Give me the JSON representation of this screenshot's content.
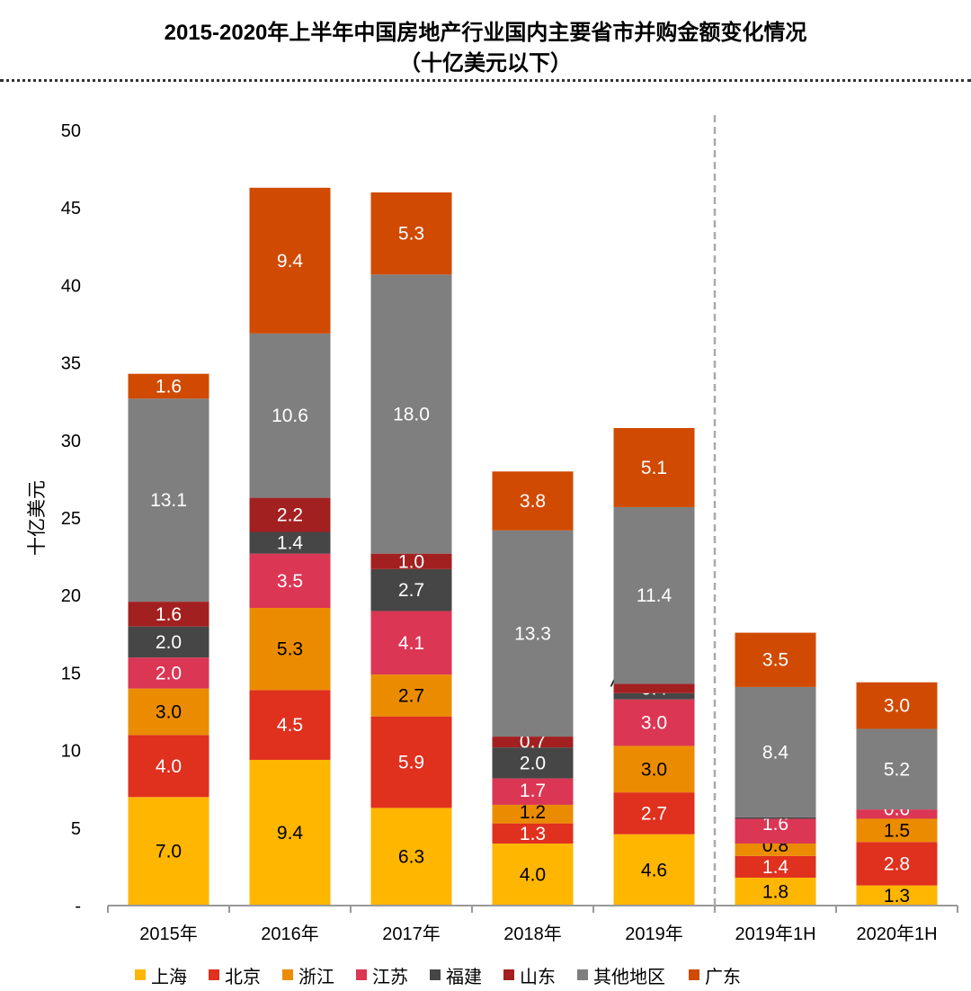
{
  "chart_data": {
    "type": "bar",
    "stacked": true,
    "title": "2015-2020年上半年中国房地产行业国内主要省市并购金额变化情况",
    "subtitle": "（十亿美元以下）",
    "xlabel": "",
    "ylabel": "十亿美元",
    "ylim": [
      0,
      50
    ],
    "yticks": [
      "-",
      "5",
      "10",
      "15",
      "20",
      "25",
      "30",
      "35",
      "40",
      "45",
      "50"
    ],
    "grid": false,
    "legend_position": "bottom",
    "categories": [
      "2015年",
      "2016年",
      "2017年",
      "2018年",
      "2019年",
      "2019年1H",
      "2020年1H"
    ],
    "divider_after": "2019年",
    "series": [
      {
        "name": "上海",
        "color": "#FFB600",
        "label_color": "#000000",
        "values": [
          7.0,
          9.4,
          6.3,
          4.0,
          4.6,
          1.8,
          1.3
        ]
      },
      {
        "name": "北京",
        "color": "#E0301E",
        "label_color": "#FFFFFF",
        "values": [
          4.0,
          4.5,
          5.9,
          1.3,
          2.7,
          1.4,
          2.8
        ]
      },
      {
        "name": "浙江",
        "color": "#EB8C00",
        "label_color": "#000000",
        "values": [
          3.0,
          5.3,
          2.7,
          1.2,
          3.0,
          0.8,
          1.5
        ]
      },
      {
        "name": "江苏",
        "color": "#DB3654",
        "label_color": "#FFFFFF",
        "values": [
          2.0,
          3.5,
          4.1,
          1.7,
          3.0,
          1.6,
          0.6
        ]
      },
      {
        "name": "福建",
        "color": "#464646",
        "label_color": "#FFFFFF",
        "values": [
          2.0,
          1.4,
          2.7,
          2.0,
          0.4,
          0.1,
          null
        ]
      },
      {
        "name": "山东",
        "color": "#A32020",
        "label_color": "#FFFFFF",
        "values": [
          1.6,
          2.2,
          1.0,
          0.7,
          0.6,
          null,
          null
        ]
      },
      {
        "name": "其他地区",
        "color": "#7F7F7F",
        "label_color": "#FFFFFF",
        "values": [
          13.1,
          10.6,
          18.0,
          13.3,
          11.4,
          8.4,
          5.2
        ]
      },
      {
        "name": "广东",
        "color": "#D04A02",
        "label_color": "#FFFFFF",
        "values": [
          1.6,
          9.4,
          5.3,
          3.8,
          5.1,
          3.5,
          3.0
        ]
      }
    ]
  }
}
